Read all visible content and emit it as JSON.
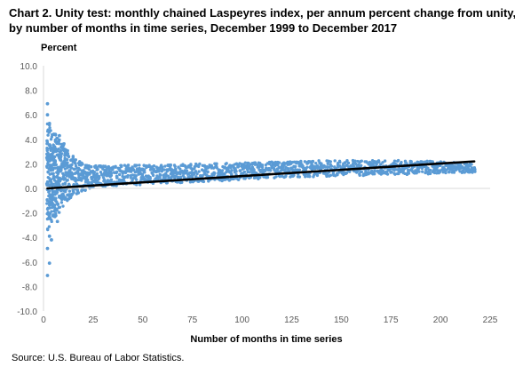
{
  "chart_data": {
    "type": "scatter",
    "title_lines": [
      "Chart 2. Unity test: monthly chained Laspeyres index, per annum percent change from unity,",
      "by number of months in time series, December 1999 to December 2017"
    ],
    "ylabel": "Percent",
    "xlabel": "Number of months in time series",
    "xlim": [
      0,
      225
    ],
    "ylim": [
      -10,
      10
    ],
    "x_ticks": [
      "0",
      "25",
      "50",
      "75",
      "100",
      "125",
      "150",
      "175",
      "200",
      "225"
    ],
    "y_ticks": [
      "10.0",
      "8.0",
      "6.0",
      "4.0",
      "2.0",
      "0.0",
      "-2.0",
      "-4.0",
      "-6.0",
      "-8.0",
      "-10.0"
    ],
    "grid": false,
    "colors": {
      "points": "#5b9bd5",
      "trend": "#000000"
    },
    "series": [
      {
        "type": "scatter",
        "x_range": [
          2,
          217
        ],
        "band_upper": [
          {
            "x": 2,
            "y": 5.5
          },
          {
            "x": 5,
            "y": 4.6
          },
          {
            "x": 8,
            "y": 4.2
          },
          {
            "x": 12,
            "y": 3.2
          },
          {
            "x": 18,
            "y": 2.2
          },
          {
            "x": 25,
            "y": 1.9
          },
          {
            "x": 50,
            "y": 1.9
          },
          {
            "x": 75,
            "y": 2.0
          },
          {
            "x": 100,
            "y": 2.1
          },
          {
            "x": 125,
            "y": 2.2
          },
          {
            "x": 150,
            "y": 2.3
          },
          {
            "x": 175,
            "y": 2.3
          },
          {
            "x": 200,
            "y": 2.2
          },
          {
            "x": 217,
            "y": 2.0
          }
        ],
        "band_lower": [
          {
            "x": 2,
            "y": -3.5
          },
          {
            "x": 5,
            "y": -2.6
          },
          {
            "x": 8,
            "y": -2.0
          },
          {
            "x": 12,
            "y": -1.0
          },
          {
            "x": 18,
            "y": -0.4
          },
          {
            "x": 25,
            "y": 0.1
          },
          {
            "x": 50,
            "y": 0.3
          },
          {
            "x": 75,
            "y": 0.5
          },
          {
            "x": 100,
            "y": 0.7
          },
          {
            "x": 125,
            "y": 0.9
          },
          {
            "x": 150,
            "y": 1.0
          },
          {
            "x": 175,
            "y": 1.1
          },
          {
            "x": 200,
            "y": 1.2
          },
          {
            "x": 217,
            "y": 1.3
          }
        ],
        "outliers": [
          {
            "x": 2,
            "y": 6.9
          },
          {
            "x": 2,
            "y": 6.0
          },
          {
            "x": 3,
            "y": 5.3
          },
          {
            "x": 2,
            "y": -7.1
          },
          {
            "x": 3,
            "y": -6.1
          },
          {
            "x": 2,
            "y": -4.9
          },
          {
            "x": 4,
            "y": -4.2
          },
          {
            "x": 3,
            "y": -3.9
          },
          {
            "x": 8,
            "y": 4.3
          },
          {
            "x": 6,
            "y": 4.4
          },
          {
            "x": 7,
            "y": -2.7
          },
          {
            "x": 10,
            "y": 3.6
          }
        ]
      },
      {
        "type": "trend_line",
        "points": [
          {
            "x": 2,
            "y": 0.0
          },
          {
            "x": 217,
            "y": 2.2
          }
        ]
      }
    ]
  },
  "source": "Source: U.S. Bureau of Labor Statistics."
}
